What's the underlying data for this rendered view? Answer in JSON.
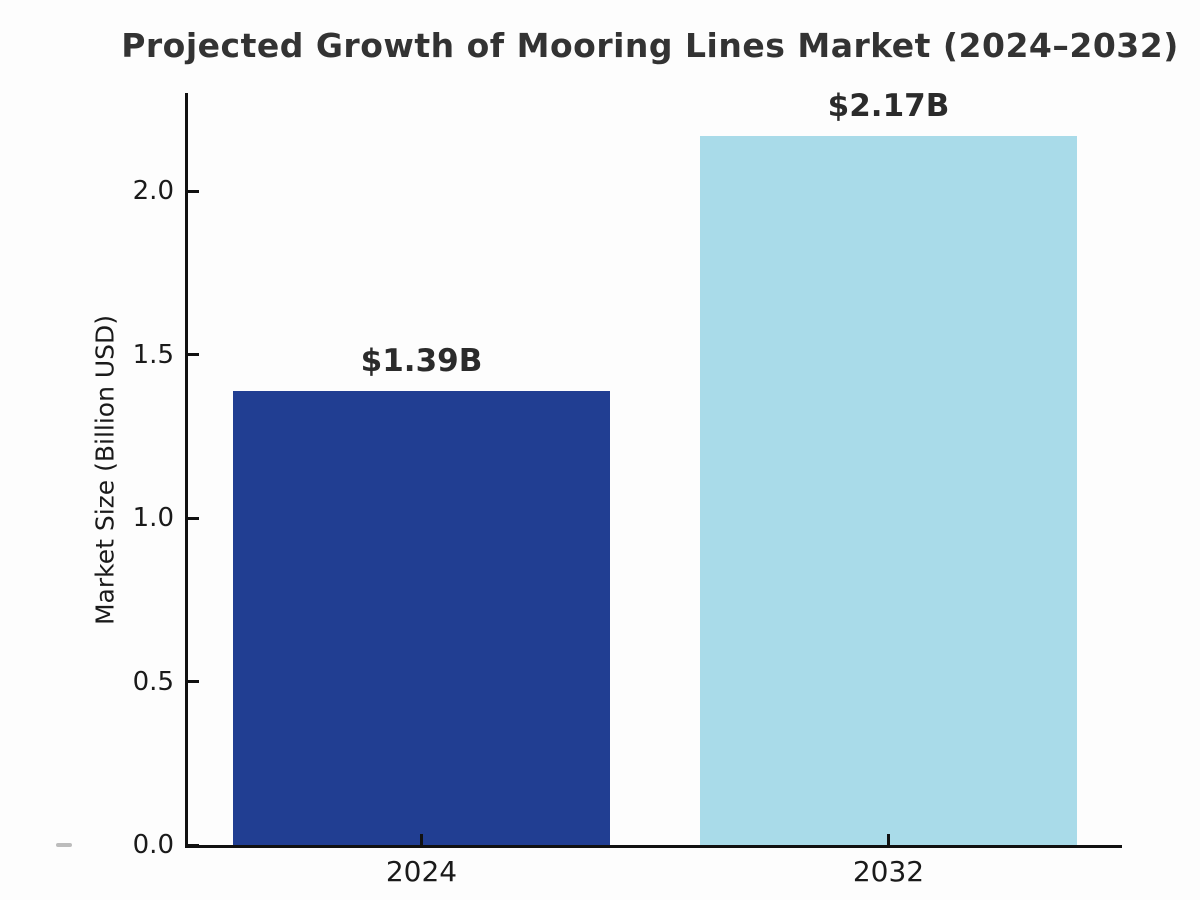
{
  "title": "Projected Growth of Mooring Lines Market (2024–2032)",
  "colors": {
    "background": "#fdfdfd",
    "axis": "#111111",
    "title_text": "#333333",
    "tick_text": "#1a1a1a",
    "value_label_text": "#2b2b2b",
    "bar_2024": "#213e92",
    "bar_2032": "#a9dbe9"
  },
  "chart_data": {
    "type": "bar",
    "title": "Projected Growth of Mooring Lines Market (2024–2032)",
    "xlabel": "",
    "ylabel": "Market Size (Billion USD)",
    "categories": [
      "2024",
      "2032"
    ],
    "values": [
      1.39,
      2.17
    ],
    "value_labels": [
      "$1.39B",
      "$2.17B"
    ],
    "bar_colors": [
      "#213e92",
      "#a9dbe9"
    ],
    "yticks": [
      0.0,
      0.5,
      1.0,
      1.5,
      2.0
    ],
    "ytick_labels": [
      "0.0",
      "0.5",
      "1.0",
      "1.5",
      "2.0"
    ],
    "ylim": [
      0,
      2.3
    ],
    "grid": false,
    "legend": null,
    "tick_direction": "in"
  }
}
